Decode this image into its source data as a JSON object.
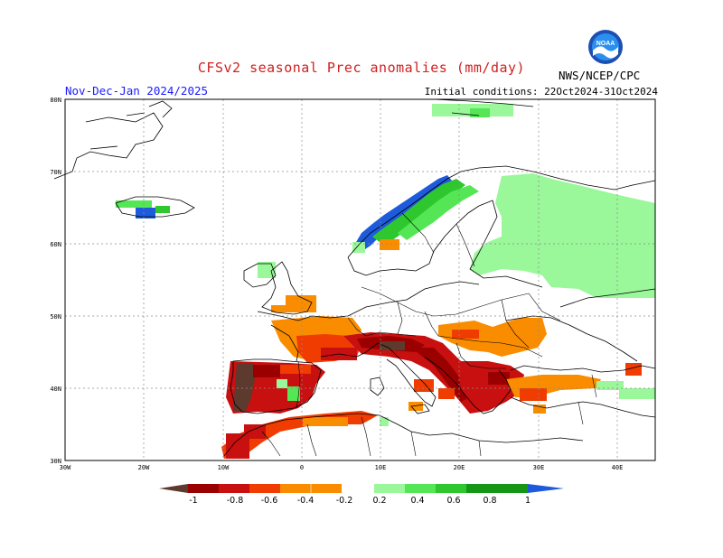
{
  "header": {
    "title": "CFSv2 seasonal Prec anomalies (mm/day)",
    "period": "Nov-Dec-Jan 2024/2025",
    "initial_conditions": "Initial conditions: 22Oct2024-31Oct2024",
    "agency": "NWS/NCEP/CPC",
    "logo_icon": "noaa-logo-icon"
  },
  "axes": {
    "lat_labels": [
      "80N",
      "70N",
      "60N",
      "50N",
      "40N",
      "30N"
    ],
    "lon_labels": [
      "30W",
      "20W",
      "10W",
      "0",
      "10E",
      "20E",
      "30E",
      "40E"
    ]
  },
  "colorbar": {
    "labels": [
      "-1",
      "-0.8",
      "-0.6",
      "-0.4",
      "-0.2",
      "0.2",
      "0.4",
      "0.6",
      "0.8",
      "1"
    ],
    "colors": [
      "#5c3a2e",
      "#9b0000",
      "#c81010",
      "#f03c00",
      "#fa8c00",
      "#ffffff",
      "#9af79a",
      "#55e655",
      "#2ec82e",
      "#159615",
      "#1e5adc"
    ]
  },
  "legend_colors": {
    "land_fill": "#ffffff",
    "coast": "#000000",
    "grid": "#8c8c8c"
  }
}
